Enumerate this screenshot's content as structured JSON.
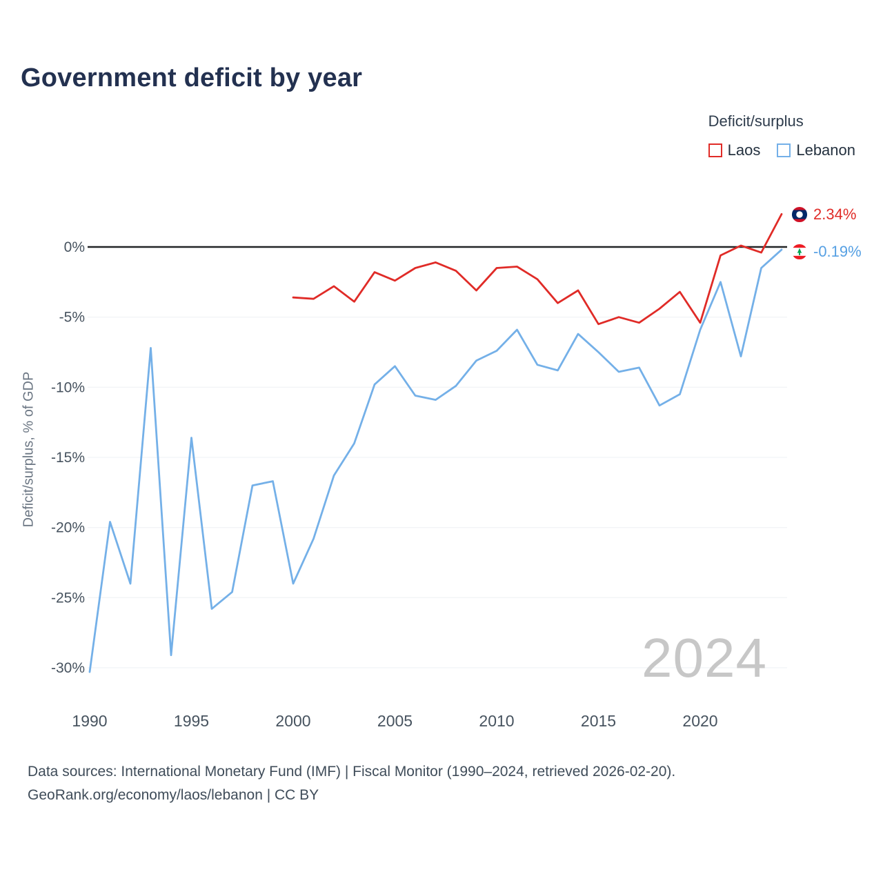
{
  "title": "Government deficit by year",
  "legend": {
    "title": "Deficit/surplus",
    "items": [
      {
        "label": "Laos",
        "color": "#e02b27"
      },
      {
        "label": "Lebanon",
        "color": "#74b0e8"
      }
    ]
  },
  "watermark": "2024",
  "end_labels": [
    {
      "series": "Laos",
      "value": "2.34%",
      "color": "#e02b27",
      "flag": "laos-flag"
    },
    {
      "series": "Lebanon",
      "value": "-0.19%",
      "color": "#56a0e3",
      "flag": "lebanon-flag"
    }
  ],
  "footer": {
    "line1": "Data sources: International Monetary Fund (IMF) | Fiscal Monitor (1990–2024, retrieved 2026-02-20).",
    "line2": "GeoRank.org/economy/laos/lebanon | CC BY"
  },
  "chart_data": {
    "type": "line",
    "title": "Government deficit by year",
    "xlabel": "",
    "ylabel": "Deficit/surplus, % of GDP",
    "xlim": [
      1990,
      2024
    ],
    "ylim": [
      -32,
      4
    ],
    "grid": true,
    "legend_position": "top-right",
    "zero_line": true,
    "yticks": [
      {
        "value": 0,
        "label": "0%"
      },
      {
        "value": -5,
        "label": "-5%"
      },
      {
        "value": -10,
        "label": "-10%"
      },
      {
        "value": -15,
        "label": "-15%"
      },
      {
        "value": -20,
        "label": "-20%"
      },
      {
        "value": -25,
        "label": "-25%"
      },
      {
        "value": -30,
        "label": "-30%"
      }
    ],
    "xticks": [
      1990,
      1995,
      2000,
      2005,
      2010,
      2015,
      2020
    ],
    "series": [
      {
        "name": "Laos",
        "color": "#e02b27",
        "years": [
          2000,
          2001,
          2002,
          2003,
          2004,
          2005,
          2006,
          2007,
          2008,
          2009,
          2010,
          2011,
          2012,
          2013,
          2014,
          2015,
          2016,
          2017,
          2018,
          2019,
          2020,
          2021,
          2022,
          2023,
          2024
        ],
        "values": [
          -3.6,
          -3.7,
          -2.8,
          -3.9,
          -1.8,
          -2.4,
          -1.5,
          -1.1,
          -1.7,
          -3.1,
          -1.5,
          -1.4,
          -2.3,
          -4.0,
          -3.1,
          -5.5,
          -5.0,
          -5.4,
          -4.4,
          -3.2,
          -5.4,
          -0.6,
          0.1,
          -0.4,
          2.34
        ]
      },
      {
        "name": "Lebanon",
        "color": "#74b0e8",
        "years": [
          1990,
          1991,
          1992,
          1993,
          1994,
          1995,
          1996,
          1997,
          1998,
          1999,
          2000,
          2001,
          2002,
          2003,
          2004,
          2005,
          2006,
          2007,
          2008,
          2009,
          2010,
          2011,
          2012,
          2013,
          2014,
          2015,
          2016,
          2017,
          2018,
          2019,
          2020,
          2021,
          2022,
          2023,
          2024
        ],
        "values": [
          -30.3,
          -19.6,
          -24.0,
          -7.2,
          -29.1,
          -13.6,
          -25.8,
          -24.6,
          -17.0,
          -16.7,
          -24.0,
          -20.8,
          -16.3,
          -14.0,
          -9.8,
          -8.5,
          -10.6,
          -10.9,
          -9.9,
          -8.1,
          -7.4,
          -5.9,
          -8.4,
          -8.8,
          -6.2,
          -7.5,
          -8.9,
          -8.6,
          -11.3,
          -10.5,
          -5.9,
          -2.5,
          -7.8,
          -1.5,
          -0.19
        ]
      }
    ]
  }
}
